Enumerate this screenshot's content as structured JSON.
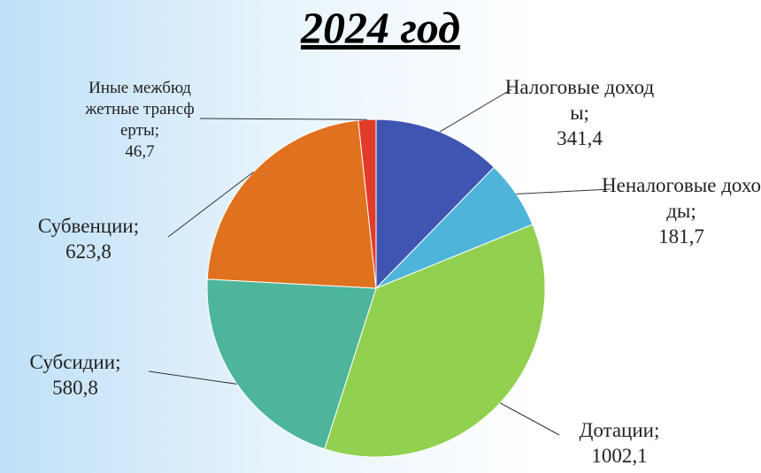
{
  "chart_data": {
    "type": "pie",
    "title": "2024 год",
    "categories": [
      "Налоговые доходы",
      "Неналоговые доходы",
      "Дотации",
      "Субсидии",
      "Субвенции",
      "Иные межбюджетные трансферты"
    ],
    "values": [
      341.4,
      181.7,
      1002.1,
      580.8,
      623.8,
      46.7
    ],
    "value_labels": [
      "341,4",
      "181,7",
      "1002,1",
      "580,8",
      "623,8",
      "46,7"
    ],
    "separator": ";",
    "colors": [
      "#4055b2",
      "#4fb4da",
      "#92d050",
      "#4db59b",
      "#e0711f",
      "#e13b29"
    ]
  }
}
